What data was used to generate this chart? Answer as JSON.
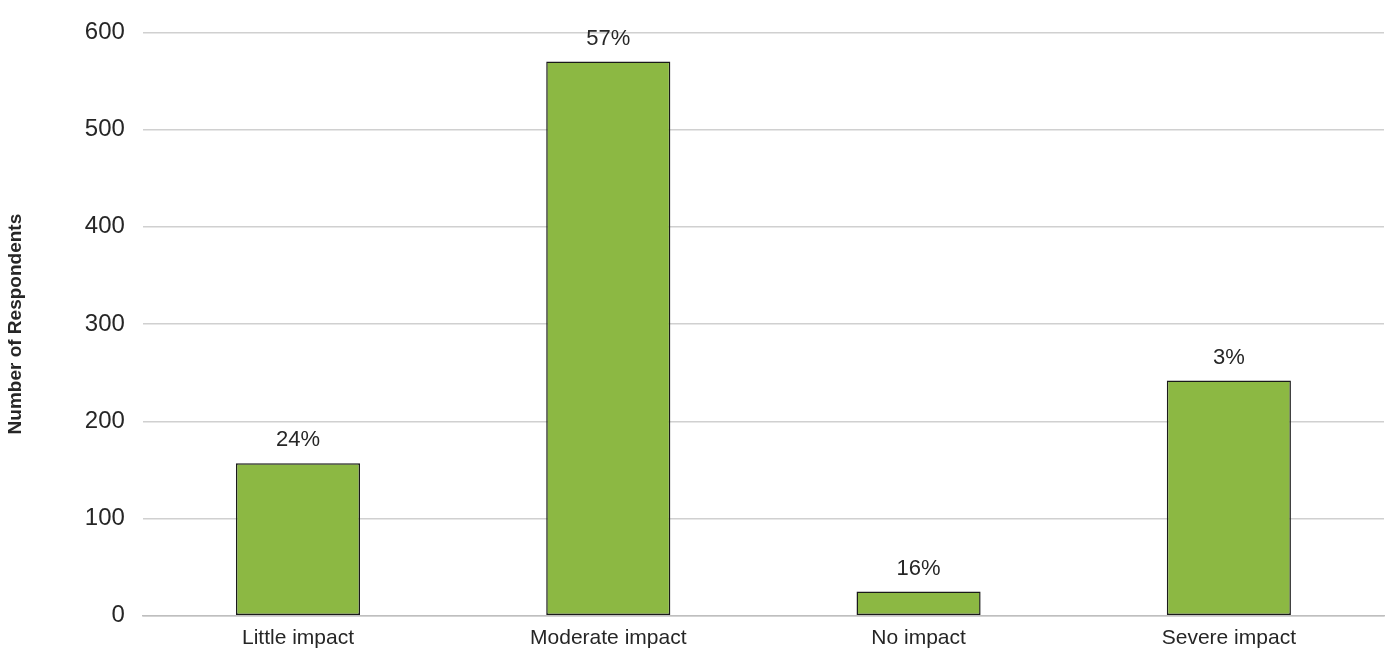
{
  "chart_data": {
    "type": "bar",
    "ylabel": "Number of Respondents",
    "categories": [
      "Little impact",
      "Moderate impact",
      "No impact",
      "Severe impact"
    ],
    "values": [
      157,
      570,
      25,
      242
    ],
    "annotations": [
      {
        "text": "24%",
        "x": "Little impact",
        "y": 157
      },
      {
        "text": "57%",
        "x": "Moderate impact",
        "y": 570
      },
      {
        "text": "16%",
        "x": "No impact",
        "y": 25
      },
      {
        "text": "3%",
        "x": "Severe impact",
        "y": 242
      }
    ],
    "color": "#8cb843",
    "ylim": [
      0,
      600
    ],
    "yticks": [
      0,
      100,
      200,
      300,
      400,
      500,
      600
    ],
    "grid": "y",
    "legend": false
  }
}
